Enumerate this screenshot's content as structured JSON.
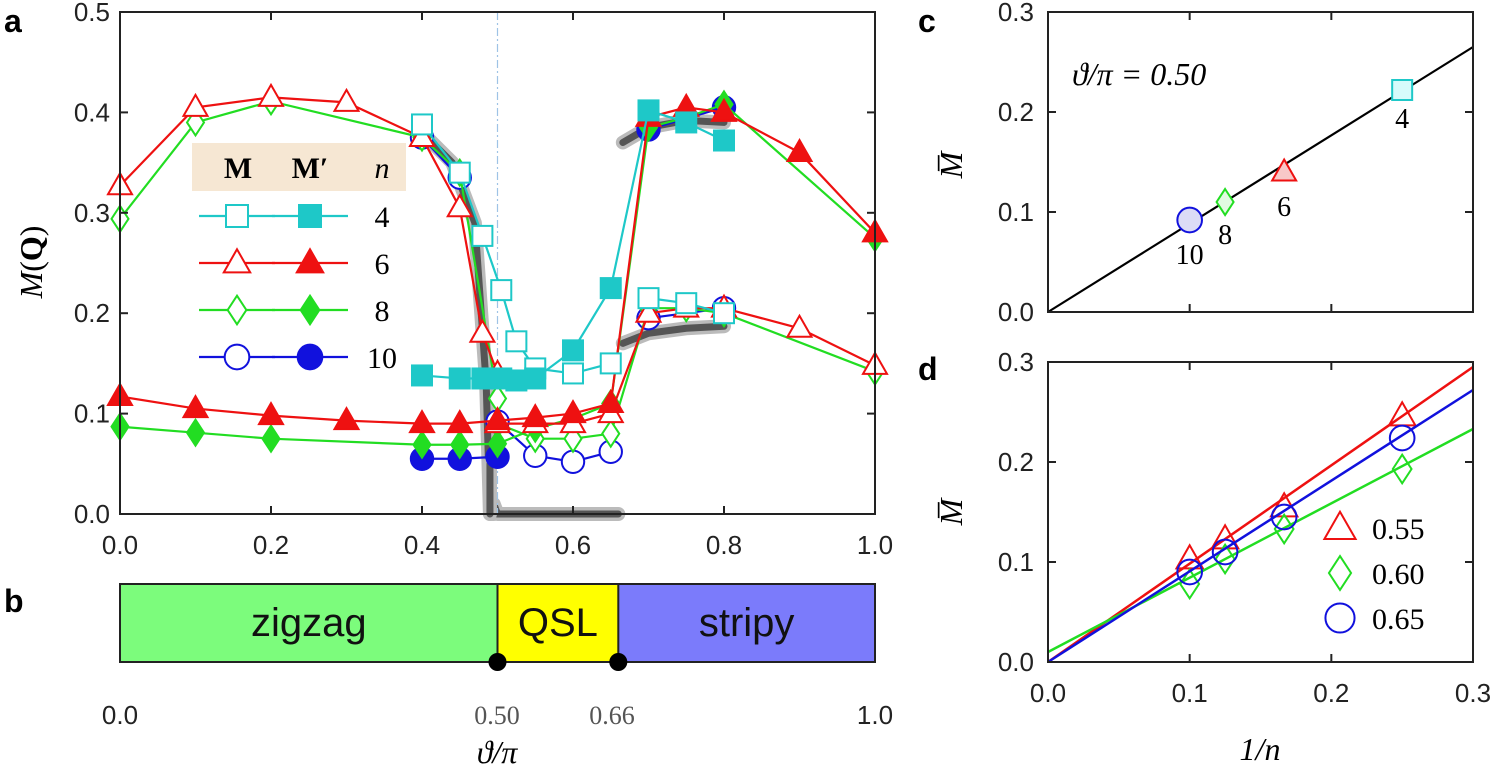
{
  "colors": {
    "n4": "#1ec8c8",
    "n6": "#ee1111",
    "n8": "#22dd22",
    "n10": "#1111dd",
    "frame": "#222222",
    "legend_bg": "#f6e7d3",
    "zigzag": "#7cfc7c",
    "qsl": "#ffff00",
    "stripy": "#7b7bfb",
    "fit": "#000000",
    "thick_curve": "#555555"
  },
  "panels": {
    "a": "a",
    "b": "b",
    "c": "c",
    "d": "d"
  },
  "chart_data": [
    {
      "panel": "a",
      "type": "line",
      "ylabel": "M(Q)",
      "xlim": [
        0,
        1
      ],
      "ylim": [
        0,
        0.5
      ],
      "xticks": [
        "0.0",
        "0.2",
        "0.4",
        "0.6",
        "0.8",
        "1.0"
      ],
      "yticks": [
        "0.0",
        "0.1",
        "0.2",
        "0.3",
        "0.4",
        "0.5"
      ],
      "legend": {
        "headers": [
          "M",
          "M′",
          "n"
        ],
        "n_values": [
          "4",
          "6",
          "8",
          "10"
        ]
      },
      "series": [
        {
          "name": "M n=4",
          "key": "n4",
          "marker": "square",
          "filled": false,
          "groups": [
            [
              [
                0.4,
                0.388
              ],
              [
                0.45,
                0.34
              ],
              [
                0.48,
                0.277
              ],
              [
                0.505,
                0.223
              ],
              [
                0.525,
                0.172
              ],
              [
                0.55,
                0.145
              ],
              [
                0.6,
                0.14
              ],
              [
                0.65,
                0.15
              ]
            ],
            [
              [
                0.7,
                0.215
              ],
              [
                0.75,
                0.21
              ],
              [
                0.8,
                0.2
              ]
            ]
          ]
        },
        {
          "name": "M' n=4",
          "key": "n4",
          "marker": "square",
          "filled": true,
          "groups": [
            [
              [
                0.4,
                0.138
              ],
              [
                0.45,
                0.135
              ],
              [
                0.48,
                0.135
              ],
              [
                0.505,
                0.135
              ],
              [
                0.525,
                0.133
              ],
              [
                0.55,
                0.135
              ],
              [
                0.6,
                0.163
              ],
              [
                0.65,
                0.225
              ],
              [
                0.7,
                0.402
              ],
              [
                0.75,
                0.39
              ],
              [
                0.8,
                0.372
              ]
            ]
          ]
        },
        {
          "name": "M n=6",
          "key": "n6",
          "marker": "triangle",
          "filled": false,
          "groups": [
            [
              [
                0,
                0.327
              ],
              [
                0.1,
                0.405
              ],
              [
                0.2,
                0.415
              ],
              [
                0.3,
                0.41
              ],
              [
                0.4,
                0.375
              ],
              [
                0.45,
                0.305
              ],
              [
                0.48,
                0.18
              ],
              [
                0.5,
                0.14
              ]
            ],
            [
              [
                0.5,
                0.09
              ],
              [
                0.55,
                0.09
              ],
              [
                0.6,
                0.09
              ],
              [
                0.65,
                0.1
              ],
              [
                0.7,
                0.2
              ],
              [
                0.75,
                0.205
              ],
              [
                0.8,
                0.205
              ],
              [
                0.9,
                0.185
              ],
              [
                1.0,
                0.148
              ]
            ]
          ]
        },
        {
          "name": "M' n=6",
          "key": "n6",
          "marker": "triangle",
          "filled": true,
          "groups": [
            [
              [
                0,
                0.117
              ],
              [
                0.1,
                0.105
              ],
              [
                0.2,
                0.098
              ],
              [
                0.3,
                0.093
              ],
              [
                0.4,
                0.09
              ],
              [
                0.45,
                0.09
              ],
              [
                0.5,
                0.093
              ],
              [
                0.55,
                0.096
              ],
              [
                0.6,
                0.1
              ],
              [
                0.65,
                0.11
              ],
              [
                0.7,
                0.395
              ],
              [
                0.75,
                0.405
              ],
              [
                0.8,
                0.4
              ],
              [
                0.9,
                0.36
              ],
              [
                1.0,
                0.28
              ]
            ]
          ]
        },
        {
          "name": "M n=8",
          "key": "n8",
          "marker": "diamond",
          "filled": false,
          "groups": [
            [
              [
                0,
                0.294
              ],
              [
                0.1,
                0.39
              ],
              [
                0.2,
                0.411
              ],
              [
                0.4,
                0.375
              ],
              [
                0.45,
                0.34
              ],
              [
                0.5,
                0.115
              ]
            ],
            [
              [
                0.5,
                0.09
              ],
              [
                0.55,
                0.075
              ],
              [
                0.6,
                0.075
              ],
              [
                0.65,
                0.08
              ],
              [
                0.7,
                0.205
              ],
              [
                0.75,
                0.205
              ],
              [
                0.8,
                0.2
              ],
              [
                1.0,
                0.142
              ]
            ]
          ]
        },
        {
          "name": "M' n=8",
          "key": "n8",
          "marker": "diamond",
          "filled": true,
          "groups": [
            [
              [
                0,
                0.087
              ],
              [
                0.1,
                0.081
              ],
              [
                0.2,
                0.075
              ],
              [
                0.4,
                0.069
              ],
              [
                0.45,
                0.069
              ],
              [
                0.5,
                0.07
              ],
              [
                0.55,
                0.085
              ],
              [
                0.6,
                0.095
              ],
              [
                0.65,
                0.11
              ],
              [
                0.7,
                0.385
              ],
              [
                0.75,
                0.395
              ],
              [
                0.8,
                0.408
              ],
              [
                1.0,
                0.275
              ]
            ]
          ]
        },
        {
          "name": "M n=10",
          "key": "n10",
          "marker": "circle",
          "filled": false,
          "groups": [
            [
              [
                0.4,
                0.375
              ],
              [
                0.45,
                0.335
              ]
            ],
            [
              [
                0.5,
                0.092
              ],
              [
                0.55,
                0.058
              ],
              [
                0.6,
                0.052
              ],
              [
                0.65,
                0.062
              ]
            ],
            [
              [
                0.7,
                0.195
              ],
              [
                0.8,
                0.205
              ]
            ]
          ]
        },
        {
          "name": "M' n=10",
          "key": "n10",
          "marker": "circle",
          "filled": true,
          "groups": [
            [
              [
                0.4,
                0.055
              ],
              [
                0.45,
                0.055
              ],
              [
                0.5,
                0.057
              ]
            ],
            [
              [
                0.7,
                0.383
              ],
              [
                0.8,
                0.405
              ]
            ]
          ]
        }
      ],
      "thick_curves": [
        [
          [
            0.4,
            0.38
          ],
          [
            0.44,
            0.35
          ],
          [
            0.47,
            0.29
          ],
          [
            0.485,
            0.13
          ],
          [
            0.49,
            0.0
          ],
          [
            0.495,
            0.0
          ]
        ],
        [
          [
            0.495,
            0.01
          ],
          [
            0.5,
            0.0
          ],
          [
            0.66,
            0.0
          ]
        ],
        [
          [
            0.666,
            0.37
          ],
          [
            0.7,
            0.385
          ],
          [
            0.75,
            0.392
          ],
          [
            0.8,
            0.39
          ]
        ],
        [
          [
            0.666,
            0.17
          ],
          [
            0.7,
            0.18
          ],
          [
            0.75,
            0.185
          ],
          [
            0.8,
            0.187
          ]
        ],
        [
          [
            0.49,
            0.0
          ],
          [
            0.49,
            0.05
          ]
        ]
      ],
      "dashed_vline": 0.5
    },
    {
      "panel": "b",
      "type": "phase-diagram",
      "xlabel": "ϑ/π",
      "phases": [
        {
          "label": "zigzag",
          "from": 0,
          "to": 0.5,
          "key": "zigzag"
        },
        {
          "label": "QSL",
          "from": 0.5,
          "to": 0.66,
          "key": "qsl"
        },
        {
          "label": "stripy",
          "from": 0.66,
          "to": 1.0,
          "key": "stripy"
        }
      ],
      "critical_points": [
        0.5,
        0.66
      ],
      "ticks": [
        "0.0",
        "0.50",
        "0.66",
        "1.0"
      ]
    },
    {
      "panel": "c",
      "type": "scatter",
      "annotation": "ϑ/π = 0.50",
      "ylabel": "M̅",
      "xlim": [
        0,
        0.3
      ],
      "ylim": [
        0,
        0.3
      ],
      "yticks": [
        "0.0",
        "0.1",
        "0.2",
        "0.3"
      ],
      "fit": [
        [
          0,
          0
        ],
        [
          0.3,
          0.265
        ]
      ],
      "points": [
        {
          "x": 0.25,
          "y": 0.222,
          "label": "4",
          "marker": "square",
          "key": "n4"
        },
        {
          "x": 0.1667,
          "y": 0.14,
          "label": "6",
          "marker": "triangle",
          "key": "n6"
        },
        {
          "x": 0.125,
          "y": 0.11,
          "label": "8",
          "marker": "diamond",
          "key": "n8"
        },
        {
          "x": 0.1,
          "y": 0.092,
          "label": "10",
          "marker": "circle",
          "key": "n10"
        }
      ]
    },
    {
      "panel": "d",
      "type": "scatter",
      "xlabel": "1/n",
      "ylabel": "M̅",
      "xlim": [
        0,
        0.3
      ],
      "ylim": [
        0,
        0.3
      ],
      "xticks": [
        "0.0",
        "0.1",
        "0.2",
        "0.3"
      ],
      "yticks": [
        "0.0",
        "0.1",
        "0.2",
        "0.3"
      ],
      "series": [
        {
          "name": "0.55",
          "marker": "triangle",
          "key": "n6",
          "x": [
            0.1,
            0.125,
            0.1667,
            0.25
          ],
          "y": [
            0.103,
            0.123,
            0.155,
            0.246
          ],
          "fit": [
            [
              0,
              0.0
            ],
            [
              0.3,
              0.295
            ]
          ]
        },
        {
          "name": "0.60",
          "marker": "diamond",
          "key": "n8",
          "x": [
            0.1,
            0.125,
            0.1667,
            0.25
          ],
          "y": [
            0.078,
            0.103,
            0.133,
            0.193
          ],
          "fit": [
            [
              0,
              0.01
            ],
            [
              0.3,
              0.233
            ]
          ]
        },
        {
          "name": "0.65",
          "marker": "circle",
          "key": "n10",
          "x": [
            0.1,
            0.125,
            0.1667,
            0.25
          ],
          "y": [
            0.09,
            0.11,
            0.145,
            0.224
          ],
          "fit": [
            [
              0,
              0.0
            ],
            [
              0.3,
              0.272
            ]
          ]
        }
      ]
    }
  ]
}
